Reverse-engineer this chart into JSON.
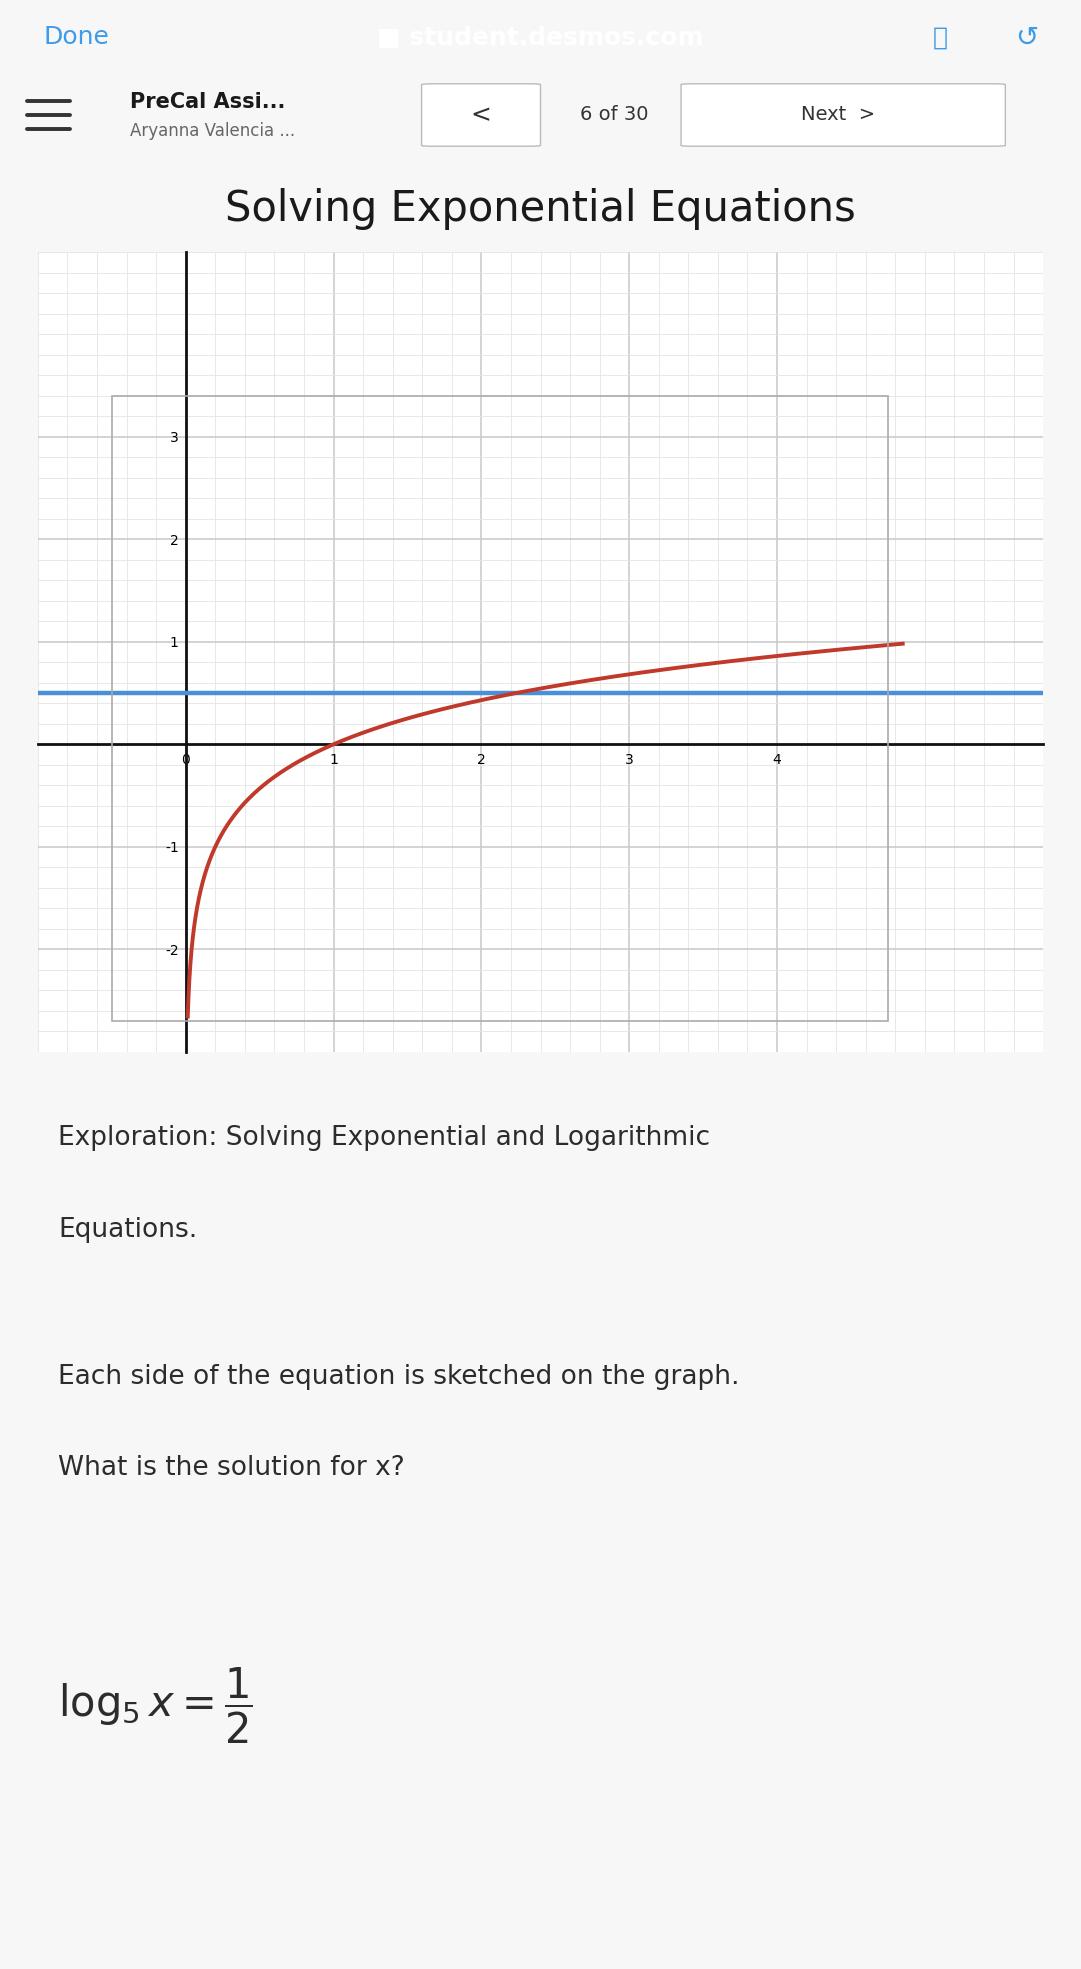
{
  "browser_bar_color": "#636363",
  "browser_text_color": "#ffffff",
  "browser_blue_color": "#3d9be9",
  "browser_done_text": "Done",
  "browser_url_text": "student.desmos.com",
  "nav_bar_color": "#f2f2f2",
  "nav_title": "PreCal Assi...",
  "nav_subtitle": "Aryanna Valencia ...",
  "nav_counter": "6 of 30",
  "chart_title": "Solving Exponential Equations",
  "chart_title_fontsize": 30,
  "graph_bg": "#ffffff",
  "grid_major_color": "#c8c8c8",
  "grid_minor_color": "#e4e4e4",
  "axis_color": "#111111",
  "red_curve_color": "#c0392b",
  "blue_line_color": "#4a90d9",
  "blue_line_y": 0.5,
  "xlim": [
    -0.5,
    4.75
  ],
  "ylim": [
    -2.7,
    3.4
  ],
  "xticks": [
    0,
    1,
    2,
    3,
    4
  ],
  "yticks": [
    -2,
    -1,
    1,
    2,
    3
  ],
  "log_base": 5,
  "text1": "Exploration: Solving Exponential and Logarithmic",
  "text2": "Equations.",
  "text3": "Each side of the equation is sketched on the graph.",
  "text4": "What is the solution for x?",
  "page_bg": "#f7f7f7",
  "body_text_color": "#2c2c2c",
  "body_fontsize": 19
}
